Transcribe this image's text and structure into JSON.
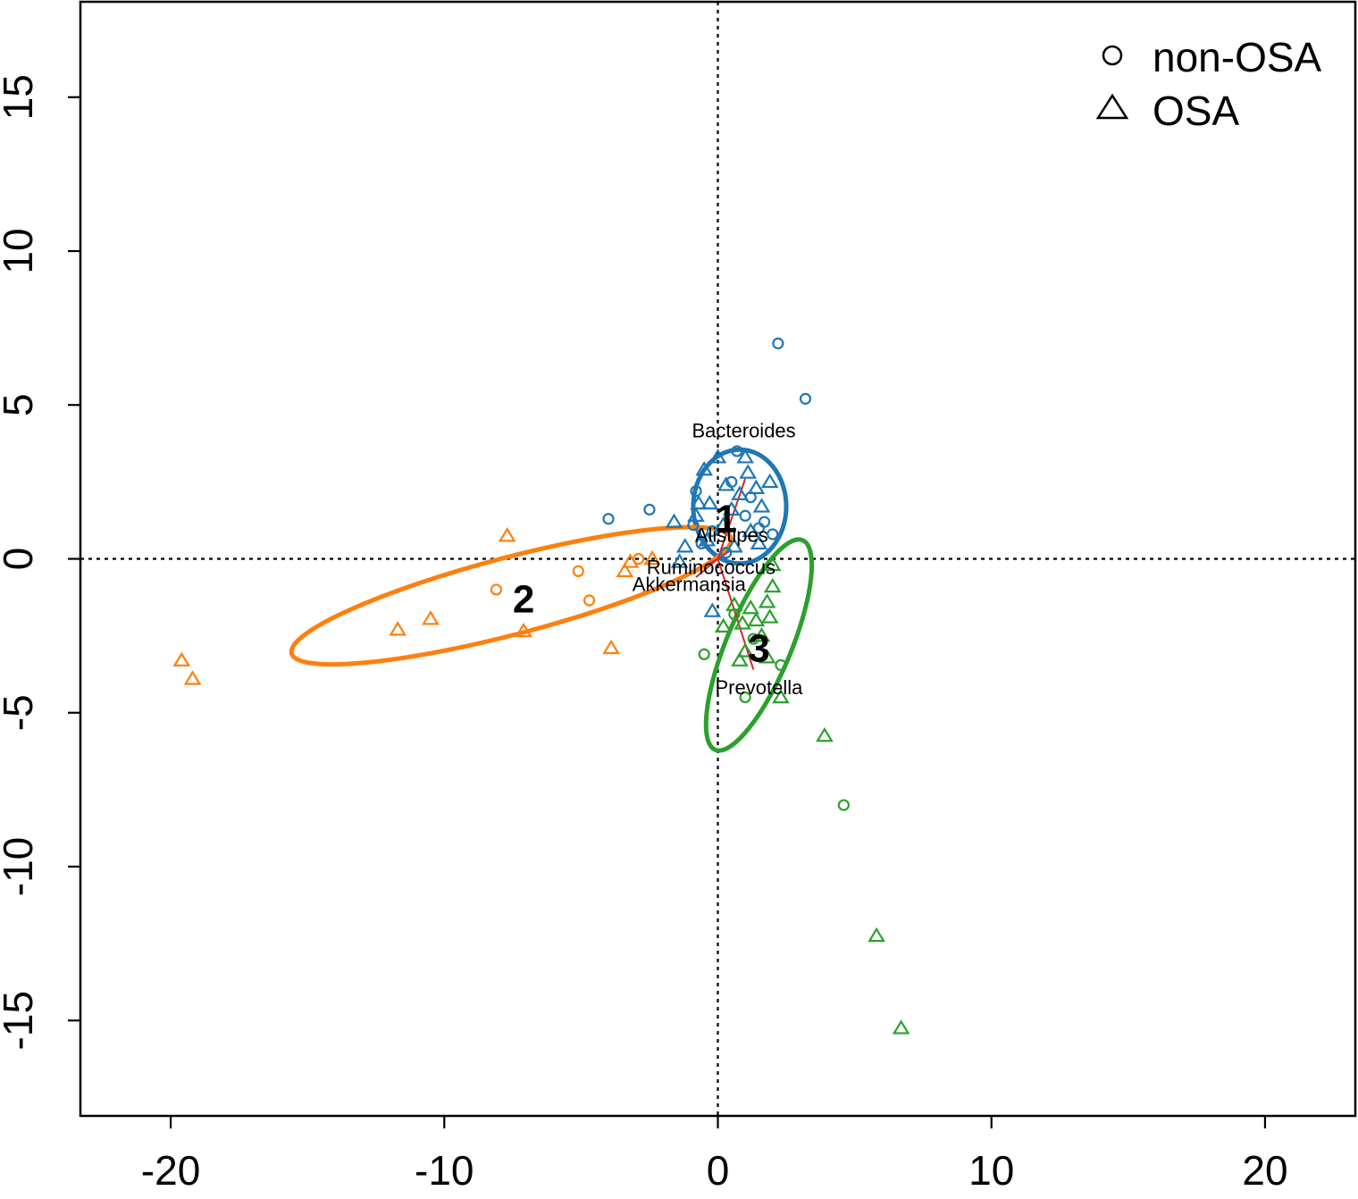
{
  "chart_data": {
    "type": "scatter",
    "xlim": [
      -23.3,
      23.3
    ],
    "ylim": [
      -18.1,
      18.1
    ],
    "x_ticks": [
      -20,
      -10,
      0,
      10,
      20
    ],
    "y_ticks": [
      -15,
      -10,
      -5,
      0,
      5,
      10,
      15
    ],
    "x_tick_labels": [
      "-20",
      "-10",
      "0",
      "10",
      "20"
    ],
    "y_tick_labels": [
      "-15",
      "-10",
      "-5",
      "0",
      "5",
      "10",
      "15"
    ],
    "reference_lines": {
      "x": 0,
      "y": 0,
      "style": "dotted"
    },
    "legend": {
      "position": "top-right",
      "items": [
        {
          "label": "non-OSA",
          "marker": "circle"
        },
        {
          "label": "OSA",
          "marker": "triangle"
        }
      ]
    },
    "colors": {
      "1": "#1f77b4",
      "2": "#ff7f0e",
      "3": "#2ca02c",
      "arrow": "#d62728"
    },
    "clusters": [
      {
        "id": "1",
        "label": "1",
        "color": "#1f77b4",
        "label_pos": [
          0.3,
          1.3
        ],
        "ellipse": {
          "center": [
            0.8,
            1.7
          ],
          "rx": 1.7,
          "ry": 1.85,
          "angle": 0
        },
        "points": [
          {
            "x": 2.2,
            "y": 7.0,
            "g": "non-OSA"
          },
          {
            "x": 3.2,
            "y": 5.2,
            "g": "non-OSA"
          },
          {
            "x": 0.7,
            "y": 3.5,
            "g": "non-OSA"
          },
          {
            "x": -0.8,
            "y": 2.2,
            "g": "non-OSA"
          },
          {
            "x": -2.5,
            "y": 1.6,
            "g": "non-OSA"
          },
          {
            "x": -4.0,
            "y": 1.3,
            "g": "non-OSA"
          },
          {
            "x": -0.9,
            "y": 1.1,
            "g": "non-OSA"
          },
          {
            "x": -0.2,
            "y": 0.9,
            "g": "non-OSA"
          },
          {
            "x": 1.5,
            "y": 1.0,
            "g": "non-OSA"
          },
          {
            "x": 2.0,
            "y": 0.8,
            "g": "non-OSA"
          },
          {
            "x": 0.5,
            "y": 2.5,
            "g": "non-OSA"
          },
          {
            "x": 1.2,
            "y": 2.0,
            "g": "non-OSA"
          },
          {
            "x": 0.3,
            "y": 0.2,
            "g": "non-OSA"
          },
          {
            "x": -0.6,
            "y": 0.5,
            "g": "non-OSA"
          },
          {
            "x": 1.0,
            "y": 1.4,
            "g": "non-OSA"
          },
          {
            "x": 1.7,
            "y": 1.2,
            "g": "non-OSA"
          },
          {
            "x": 0.0,
            "y": 3.3,
            "g": "OSA"
          },
          {
            "x": 1.0,
            "y": 3.3,
            "g": "OSA"
          },
          {
            "x": -0.5,
            "y": 2.9,
            "g": "OSA"
          },
          {
            "x": 1.1,
            "y": 2.8,
            "g": "OSA"
          },
          {
            "x": 1.9,
            "y": 2.5,
            "g": "OSA"
          },
          {
            "x": 0.3,
            "y": 2.4,
            "g": "OSA"
          },
          {
            "x": 1.4,
            "y": 2.3,
            "g": "OSA"
          },
          {
            "x": 0.8,
            "y": 2.1,
            "g": "OSA"
          },
          {
            "x": -0.3,
            "y": 1.8,
            "g": "OSA"
          },
          {
            "x": 0.5,
            "y": 1.6,
            "g": "OSA"
          },
          {
            "x": 1.6,
            "y": 1.7,
            "g": "OSA"
          },
          {
            "x": -1.6,
            "y": 1.2,
            "g": "OSA"
          },
          {
            "x": -0.8,
            "y": 1.4,
            "g": "OSA"
          },
          {
            "x": 0.2,
            "y": 1.1,
            "g": "OSA"
          },
          {
            "x": 1.2,
            "y": 0.9,
            "g": "OSA"
          },
          {
            "x": -1.2,
            "y": 0.4,
            "g": "OSA"
          },
          {
            "x": -0.4,
            "y": 0.6,
            "g": "OSA"
          },
          {
            "x": -1.4,
            "y": -0.1,
            "g": "OSA"
          },
          {
            "x": 0.6,
            "y": 0.4,
            "g": "OSA"
          },
          {
            "x": -0.2,
            "y": -1.7,
            "g": "OSA"
          },
          {
            "x": 1.5,
            "y": 0.5,
            "g": "OSA"
          },
          {
            "x": -0.7,
            "y": 1.8,
            "g": "OSA"
          }
        ]
      },
      {
        "id": "2",
        "label": "2",
        "color": "#ff7f0e",
        "label_pos": [
          -7.1,
          -1.3
        ],
        "ellipse": {
          "center": [
            -7.55,
            -1.2
          ],
          "rx": 8.3,
          "ry": 1.25,
          "angle": 14.7
        },
        "points": [
          {
            "x": -5.1,
            "y": -0.4,
            "g": "non-OSA"
          },
          {
            "x": -8.1,
            "y": -1.0,
            "g": "non-OSA"
          },
          {
            "x": -4.7,
            "y": -1.35,
            "g": "non-OSA"
          },
          {
            "x": -2.9,
            "y": 0.0,
            "g": "non-OSA"
          },
          {
            "x": -19.6,
            "y": -3.3,
            "g": "OSA"
          },
          {
            "x": -19.2,
            "y": -3.9,
            "g": "OSA"
          },
          {
            "x": -11.7,
            "y": -2.3,
            "g": "OSA"
          },
          {
            "x": -10.5,
            "y": -1.95,
            "g": "OSA"
          },
          {
            "x": -7.7,
            "y": 0.75,
            "g": "OSA"
          },
          {
            "x": -7.1,
            "y": -2.35,
            "g": "OSA"
          },
          {
            "x": -3.9,
            "y": -2.9,
            "g": "OSA"
          },
          {
            "x": -3.4,
            "y": -0.4,
            "g": "OSA"
          },
          {
            "x": -3.2,
            "y": -0.1,
            "g": "OSA"
          },
          {
            "x": -2.4,
            "y": 0.0,
            "g": "OSA"
          }
        ]
      },
      {
        "id": "3",
        "label": "3",
        "color": "#2ca02c",
        "label_pos": [
          1.5,
          -2.9
        ],
        "ellipse": {
          "center": [
            1.5,
            -2.8
          ],
          "rx": 4.15,
          "ry": 1.05,
          "angle": 67.4
        },
        "points": [
          {
            "x": -0.5,
            "y": -3.1,
            "g": "non-OSA"
          },
          {
            "x": 1.0,
            "y": -4.5,
            "g": "non-OSA"
          },
          {
            "x": 2.3,
            "y": -3.45,
            "g": "non-OSA"
          },
          {
            "x": 4.6,
            "y": -8.0,
            "g": "non-OSA"
          },
          {
            "x": 0.6,
            "y": -1.8,
            "g": "non-OSA"
          },
          {
            "x": 1.3,
            "y": -2.6,
            "g": "non-OSA"
          },
          {
            "x": 2.0,
            "y": -0.2,
            "g": "OSA"
          },
          {
            "x": 2.0,
            "y": -0.9,
            "g": "OSA"
          },
          {
            "x": 1.8,
            "y": -1.4,
            "g": "OSA"
          },
          {
            "x": 1.2,
            "y": -1.6,
            "g": "OSA"
          },
          {
            "x": 0.6,
            "y": -1.5,
            "g": "OSA"
          },
          {
            "x": 1.9,
            "y": -1.9,
            "g": "OSA"
          },
          {
            "x": 1.4,
            "y": -2.0,
            "g": "OSA"
          },
          {
            "x": 0.9,
            "y": -2.1,
            "g": "OSA"
          },
          {
            "x": 0.2,
            "y": -2.2,
            "g": "OSA"
          },
          {
            "x": 1.6,
            "y": -2.5,
            "g": "OSA"
          },
          {
            "x": 1.0,
            "y": -3.0,
            "g": "OSA"
          },
          {
            "x": 1.8,
            "y": -3.2,
            "g": "OSA"
          },
          {
            "x": 0.8,
            "y": -3.3,
            "g": "OSA"
          },
          {
            "x": 2.3,
            "y": -4.5,
            "g": "OSA"
          },
          {
            "x": 3.9,
            "y": -5.75,
            "g": "OSA"
          },
          {
            "x": 5.8,
            "y": -12.25,
            "g": "OSA"
          },
          {
            "x": 6.7,
            "y": -15.25,
            "g": "OSA"
          }
        ]
      }
    ],
    "genus_labels": [
      {
        "text": "Bacteroides",
        "x": 0.95,
        "y": 3.95
      },
      {
        "text": "Alistipes",
        "x": 0.5,
        "y": 0.55
      },
      {
        "text": "Ruminococcus",
        "x": -0.25,
        "y": -0.5
      },
      {
        "text": "Akkermansia",
        "x": -1.05,
        "y": -1.05
      },
      {
        "text": "Prevotella",
        "x": 1.5,
        "y": -4.4
      }
    ],
    "arrows": [
      {
        "to": [
          1.0,
          2.6
        ]
      },
      {
        "to": [
          0.5,
          0.3
        ]
      },
      {
        "to": [
          -0.4,
          -0.2
        ]
      },
      {
        "to": [
          -0.8,
          -0.6
        ]
      },
      {
        "to": [
          1.3,
          -3.6
        ]
      }
    ]
  }
}
